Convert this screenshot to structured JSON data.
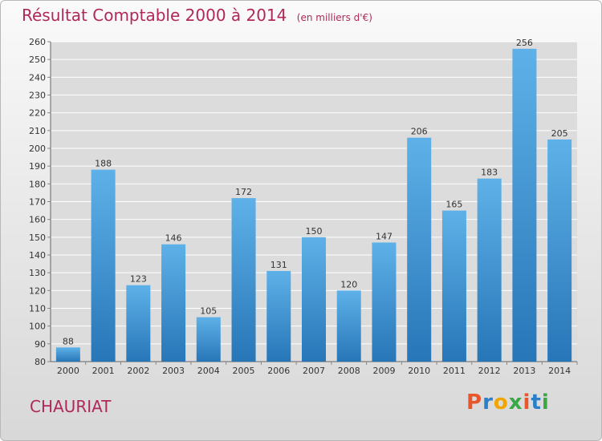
{
  "header": {
    "title": "Résultat Comptable 2000 à 2014",
    "subtitle": "(en milliers d'€)"
  },
  "footer": {
    "place": "CHAURIAT",
    "logo": "Proxiti",
    "logo_colors": [
      "#e8572b",
      "#2a7fc9",
      "#f0a500",
      "#3aa845",
      "#e8572b",
      "#2a7fc9",
      "#3aa845"
    ]
  },
  "colors": {
    "bar_top": "#5eb1e8",
    "bar_bottom": "#2776b8",
    "text": "#333333",
    "grid": "#ffffff",
    "plot_bg": "#dcdcdc"
  },
  "chart_data": {
    "type": "bar",
    "title": "Résultat Comptable 2000 à 2014",
    "categories": [
      "2000",
      "2001",
      "2002",
      "2003",
      "2004",
      "2005",
      "2006",
      "2007",
      "2008",
      "2009",
      "2010",
      "2011",
      "2012",
      "2013",
      "2014"
    ],
    "values": [
      88,
      188,
      123,
      146,
      105,
      172,
      131,
      150,
      120,
      147,
      206,
      165,
      183,
      256,
      205
    ],
    "ylim": [
      80,
      260
    ],
    "ytick_step": 10,
    "grid": true
  }
}
